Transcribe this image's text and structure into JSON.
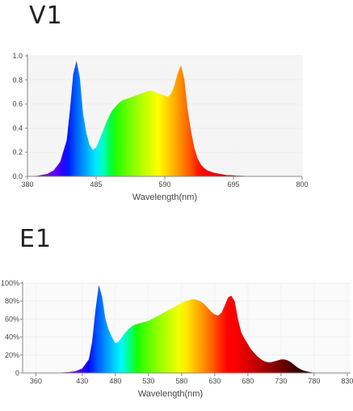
{
  "chart_data": [
    {
      "type": "area",
      "title": "V1",
      "xlabel": "Wavelength(nm)",
      "ylabel": "",
      "x_ticks": [
        380,
        485,
        590,
        695,
        800
      ],
      "y_ticks": [
        "0.0",
        "0.2",
        "0.4",
        "0.6",
        "0.8",
        "1.0"
      ],
      "xlim": [
        380,
        800
      ],
      "ylim": [
        0,
        1.0
      ],
      "grid": true,
      "x": [
        390,
        400,
        410,
        420,
        430,
        440,
        445,
        450,
        455,
        460,
        465,
        470,
        475,
        480,
        485,
        490,
        495,
        500,
        505,
        510,
        515,
        520,
        525,
        530,
        535,
        540,
        545,
        550,
        555,
        560,
        565,
        570,
        575,
        580,
        585,
        590,
        595,
        600,
        605,
        610,
        615,
        620,
        625,
        630,
        635,
        640,
        645,
        650,
        655,
        660,
        665,
        670,
        675,
        680,
        685,
        690,
        695,
        700,
        705,
        710,
        715,
        720,
        725,
        730,
        735,
        740,
        745,
        750,
        755,
        760
      ],
      "values": [
        0.0,
        0.01,
        0.02,
        0.05,
        0.12,
        0.3,
        0.55,
        0.85,
        0.96,
        0.82,
        0.52,
        0.36,
        0.26,
        0.22,
        0.24,
        0.3,
        0.37,
        0.44,
        0.5,
        0.55,
        0.58,
        0.61,
        0.63,
        0.64,
        0.65,
        0.66,
        0.67,
        0.68,
        0.69,
        0.7,
        0.71,
        0.71,
        0.7,
        0.69,
        0.68,
        0.67,
        0.66,
        0.69,
        0.76,
        0.86,
        0.92,
        0.8,
        0.55,
        0.38,
        0.24,
        0.15,
        0.1,
        0.07,
        0.05,
        0.04,
        0.03,
        0.025,
        0.02,
        0.015,
        0.01,
        0.01,
        0.008,
        0.006,
        0.005,
        0.004,
        0.003,
        0.002,
        0.002,
        0.001,
        0.001,
        0.0,
        0.0,
        0.0,
        0.0,
        0.0
      ]
    },
    {
      "type": "area",
      "title": "E1",
      "xlabel": "Wavelength(nm)",
      "ylabel": "",
      "x_ticks": [
        360,
        430,
        480,
        530,
        580,
        630,
        680,
        730,
        780,
        830
      ],
      "y_ticks": [
        "0",
        "20%",
        "40%",
        "60%",
        "80%",
        "100%"
      ],
      "xlim": [
        340,
        835
      ],
      "ylim": [
        0,
        1.0
      ],
      "grid": true,
      "x": [
        380,
        390,
        400,
        410,
        420,
        430,
        440,
        445,
        450,
        455,
        460,
        465,
        470,
        475,
        480,
        485,
        490,
        495,
        500,
        505,
        510,
        515,
        520,
        525,
        530,
        535,
        540,
        545,
        550,
        555,
        560,
        565,
        570,
        575,
        580,
        585,
        590,
        595,
        600,
        605,
        610,
        615,
        620,
        625,
        630,
        635,
        640,
        645,
        650,
        655,
        660,
        665,
        670,
        675,
        680,
        685,
        690,
        695,
        700,
        705,
        710,
        715,
        720,
        725,
        730,
        735,
        740,
        745,
        750,
        755,
        760,
        765,
        770,
        775,
        780,
        790,
        800
      ],
      "values": [
        0.0,
        0.0,
        0.005,
        0.01,
        0.02,
        0.05,
        0.15,
        0.35,
        0.7,
        0.98,
        0.85,
        0.6,
        0.48,
        0.4,
        0.33,
        0.35,
        0.4,
        0.45,
        0.49,
        0.52,
        0.54,
        0.55,
        0.56,
        0.57,
        0.58,
        0.6,
        0.62,
        0.64,
        0.66,
        0.68,
        0.7,
        0.72,
        0.74,
        0.76,
        0.78,
        0.8,
        0.81,
        0.82,
        0.82,
        0.81,
        0.79,
        0.76,
        0.72,
        0.68,
        0.65,
        0.64,
        0.67,
        0.75,
        0.84,
        0.86,
        0.8,
        0.6,
        0.45,
        0.38,
        0.32,
        0.26,
        0.22,
        0.18,
        0.15,
        0.13,
        0.12,
        0.12,
        0.13,
        0.14,
        0.15,
        0.15,
        0.14,
        0.12,
        0.09,
        0.06,
        0.04,
        0.025,
        0.015,
        0.008,
        0.004,
        0.001,
        0.0
      ]
    }
  ]
}
